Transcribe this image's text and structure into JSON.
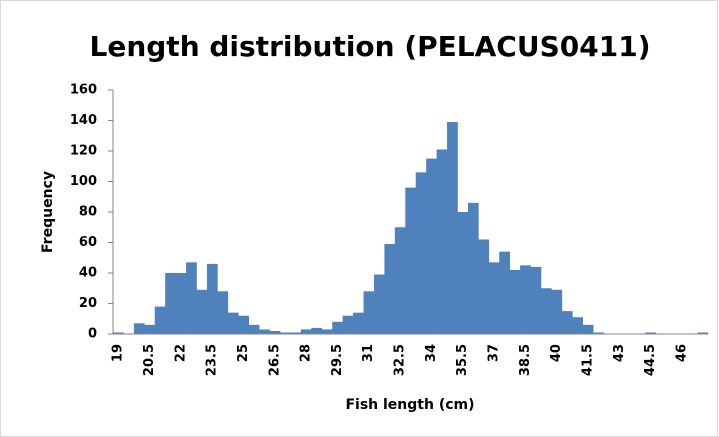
{
  "chart_data": {
    "type": "histogram",
    "title": "Length distribution  (PELACUS0411)",
    "x_label": "Fish length (cm)",
    "y_label": "Frequency",
    "color": "#4f81bd",
    "categories": [
      "19",
      null,
      null,
      "20.5",
      null,
      null,
      "22",
      null,
      null,
      "23.5",
      null,
      null,
      "25",
      null,
      null,
      "26.5",
      null,
      null,
      "28",
      null,
      null,
      "29.5",
      null,
      null,
      "31",
      null,
      null,
      "32.5",
      null,
      null,
      "34",
      null,
      null,
      "35.5",
      null,
      null,
      "37",
      null,
      null,
      "38.5",
      null,
      null,
      "40",
      null,
      null,
      "41.5",
      null,
      null,
      "43",
      null,
      null,
      "44.5",
      null,
      null,
      "46",
      null,
      null
    ],
    "values": [
      1,
      0,
      7,
      6,
      18,
      40,
      40,
      47,
      29,
      46,
      28,
      14,
      12,
      6,
      3,
      2,
      1,
      1,
      3,
      4,
      3,
      8,
      12,
      14,
      28,
      39,
      59,
      70,
      96,
      106,
      115,
      121,
      139,
      80,
      86,
      62,
      47,
      54,
      42,
      45,
      44,
      30,
      29,
      15,
      11,
      6,
      1,
      0,
      0,
      0,
      0,
      1,
      0,
      0,
      0,
      0,
      1
    ],
    "ylim": [
      0,
      160
    ],
    "yticks": [
      0,
      20,
      40,
      60,
      80,
      100,
      120,
      140,
      160
    ],
    "grid": false
  }
}
